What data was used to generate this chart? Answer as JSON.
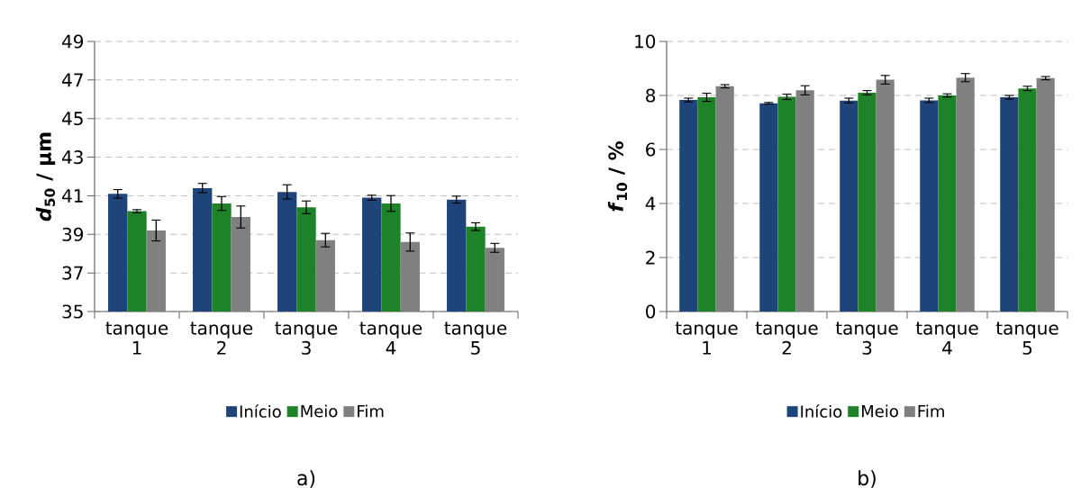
{
  "chart_data": [
    {
      "type": "bar",
      "ylabel": "*d*$_{50}$ / µm",
      "categories": [
        "tanque 1",
        "tanque 2",
        "tanque 3",
        "tanque 4",
        "tanque 5"
      ],
      "series": [
        {
          "name": "Início",
          "color": "#1f4479",
          "values": [
            41.1,
            41.4,
            41.2,
            40.9,
            40.8
          ],
          "errors": [
            0.22,
            0.24,
            0.37,
            0.13,
            0.18
          ]
        },
        {
          "name": "Meio",
          "color": "#1e8228",
          "values": [
            40.2,
            40.6,
            40.4,
            40.6,
            39.4
          ],
          "errors": [
            0.08,
            0.36,
            0.33,
            0.41,
            0.2
          ]
        },
        {
          "name": "Fim",
          "color": "#808080",
          "values": [
            39.2,
            39.9,
            38.7,
            38.6,
            38.3
          ],
          "errors": [
            0.54,
            0.57,
            0.35,
            0.47,
            0.23
          ]
        }
      ],
      "ylim": [
        35,
        49
      ],
      "yticks": [
        35,
        37,
        39,
        41,
        43,
        45,
        47,
        49
      ],
      "grid": "y",
      "legend": "bottom",
      "annotations": [
        "a)"
      ]
    },
    {
      "type": "bar",
      "ylabel": "*f*$_{10}$ / %",
      "categories": [
        "tanque 1",
        "tanque 2",
        "tanque 3",
        "tanque 4",
        "tanque 5"
      ],
      "series": [
        {
          "name": "Início",
          "color": "#1f4479",
          "values": [
            7.83,
            7.71,
            7.81,
            7.82,
            7.93
          ],
          "errors": [
            0.07,
            0.03,
            0.09,
            0.08,
            0.07
          ]
        },
        {
          "name": "Meio",
          "color": "#1e8228",
          "values": [
            7.93,
            7.95,
            8.1,
            8.0,
            8.26
          ],
          "errors": [
            0.15,
            0.1,
            0.08,
            0.06,
            0.08
          ]
        },
        {
          "name": "Fim",
          "color": "#808080",
          "values": [
            8.34,
            8.19,
            8.58,
            8.66,
            8.64
          ],
          "errors": [
            0.06,
            0.17,
            0.16,
            0.15,
            0.06
          ]
        }
      ],
      "ylim": [
        0,
        10
      ],
      "yticks": [
        0,
        2,
        4,
        6,
        8,
        10
      ],
      "grid": "y",
      "legend": "bottom",
      "annotations": [
        "b)"
      ]
    }
  ]
}
